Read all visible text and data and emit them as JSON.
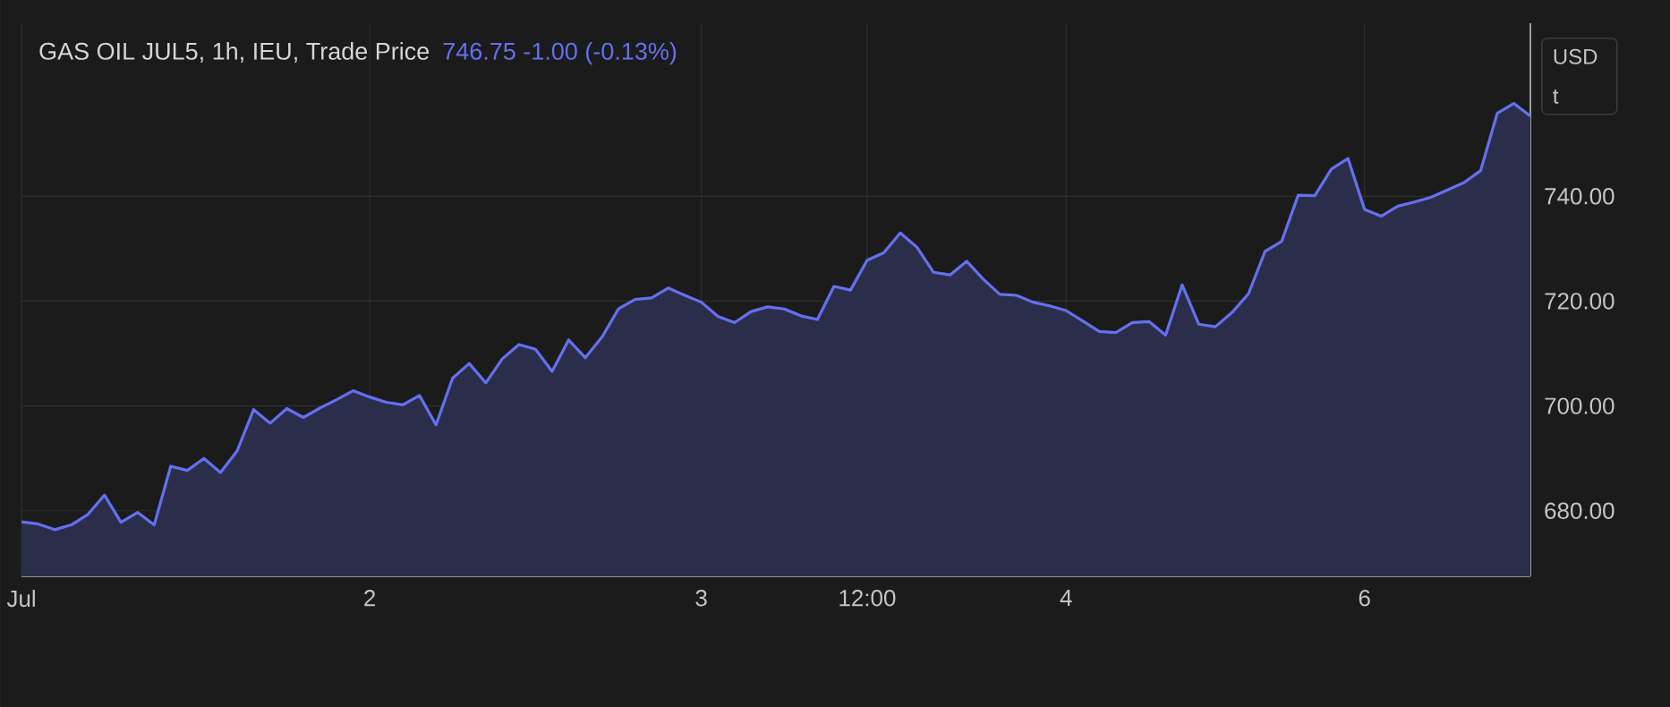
{
  "chart_data": {
    "type": "area",
    "title": "GAS OIL JUL5, 1h, IEU, Trade Price",
    "subtitle": "746.75  -1.00 (-0.13%)",
    "ylabel": "USD t",
    "categories": [
      "Jul",
      null,
      null,
      null,
      null,
      null,
      null,
      null,
      null,
      null,
      null,
      null,
      null,
      null,
      null,
      null,
      null,
      null,
      null,
      null,
      null,
      "2",
      null,
      null,
      null,
      null,
      null,
      null,
      null,
      null,
      null,
      null,
      null,
      null,
      null,
      null,
      null,
      null,
      null,
      null,
      null,
      "3",
      null,
      null,
      null,
      null,
      null,
      null,
      null,
      null,
      null,
      "12:00",
      null,
      null,
      null,
      null,
      null,
      null,
      null,
      null,
      null,
      null,
      null,
      "4",
      null,
      null,
      null,
      null,
      null,
      null,
      null,
      null,
      null,
      null,
      null,
      null,
      null,
      null,
      null,
      null,
      null,
      "6",
      null,
      null,
      null,
      null,
      null,
      null,
      null,
      null,
      null,
      null
    ],
    "series": [
      {
        "color": "#6470f0",
        "values": [
          677.9,
          677.5,
          676.4,
          677.3,
          679.3,
          683.0,
          677.8,
          679.7,
          677.3,
          688.5,
          687.7,
          690.0,
          687.3,
          691.4,
          699.3,
          696.7,
          699.5,
          697.8,
          699.6,
          701.2,
          702.9,
          701.7,
          700.7,
          700.2,
          702.0,
          696.4,
          705.3,
          708.1,
          704.4,
          709.0,
          711.7,
          710.8,
          706.6,
          712.6,
          709.2,
          713.1,
          718.5,
          720.3,
          720.6,
          722.5,
          721.1,
          719.8,
          717.1,
          715.9,
          718.0,
          718.9,
          718.5,
          717.2,
          716.5,
          722.8,
          722.1,
          727.8,
          729.2,
          733.0,
          730.3,
          725.5,
          725.0,
          727.6,
          724.2,
          721.3,
          721.1,
          719.8,
          719.1,
          718.2,
          716.2,
          714.2,
          714.0,
          715.9,
          716.1,
          713.5,
          723.1,
          715.6,
          715.1,
          717.8,
          721.4,
          729.5,
          731.4,
          740.2,
          740.1,
          745.2,
          747.2,
          737.5,
          736.2,
          738.1,
          738.9,
          739.8,
          741.2,
          742.6,
          744.9,
          755.8,
          757.7,
          755.3
        ]
      }
    ],
    "ylim": [
      667.5,
      773
    ],
    "yticks": [
      {
        "value": 680,
        "label": "680.00"
      },
      {
        "value": 700,
        "label": "700.00"
      },
      {
        "value": 720,
        "label": "720.00"
      },
      {
        "value": 740,
        "label": "740.00"
      }
    ],
    "grid": true
  }
}
